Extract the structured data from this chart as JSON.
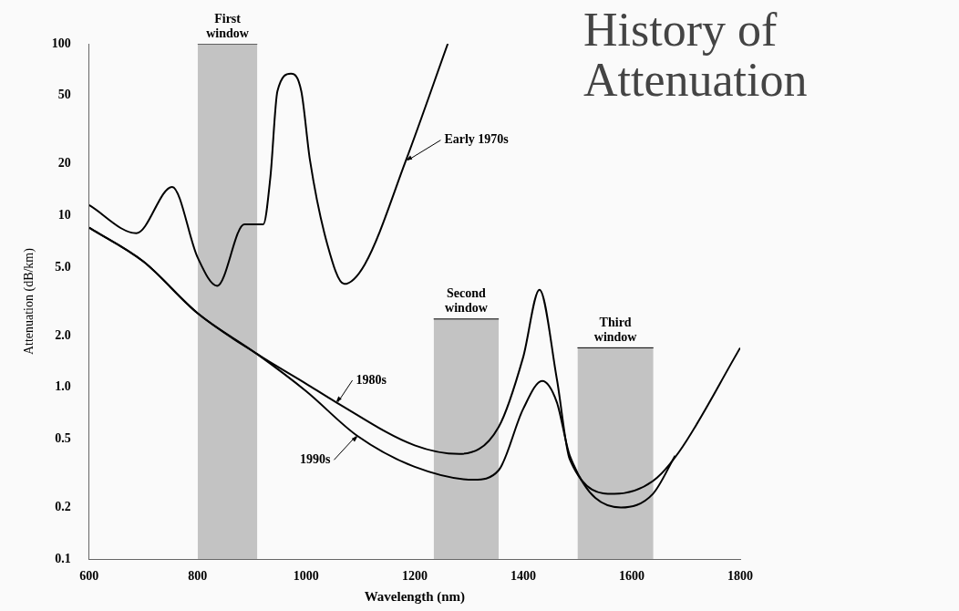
{
  "chart_data": {
    "type": "line",
    "title": "History of Attenuation",
    "xlabel": "Wavelength (nm)",
    "ylabel": "Attenuation (dB/km)",
    "xlim": [
      600,
      1800
    ],
    "xticks": [
      600,
      800,
      1000,
      1200,
      1400,
      1600,
      1800
    ],
    "ylim": [
      0.1,
      100
    ],
    "yticks": [
      {
        "value": 0.1,
        "label": "0.1"
      },
      {
        "value": 0.2,
        "label": "0.2"
      },
      {
        "value": 0.5,
        "label": "0.5"
      },
      {
        "value": 1,
        "label": "1.0"
      },
      {
        "value": 2,
        "label": "2.0"
      },
      {
        "value": 5,
        "label": "5.0"
      },
      10,
      20,
      50,
      100
    ],
    "log": "y",
    "grid": false,
    "legend": false,
    "marker": "none",
    "line_style": "solid",
    "series": [
      {
        "type": "area",
        "color": "#a8a8a8",
        "x": [
          800,
          910
        ],
        "values": [
          100,
          100
        ]
      },
      {
        "type": "area",
        "color": "#a8a8a8",
        "x": [
          1235,
          1355
        ],
        "values": [
          2.5,
          2.5
        ]
      },
      {
        "type": "area",
        "color": "#a8a8a8",
        "x": [
          1500,
          1640
        ],
        "values": [
          1.7,
          1.7
        ]
      },
      {
        "name": "Early 1970s",
        "color": "#000000",
        "x": [
          600,
          687,
          753,
          800,
          836,
          886,
          921,
          934,
          947,
          972,
          991,
          1007,
          1039,
          1070,
          1108,
          1184,
          1261
        ],
        "values": [
          11.5,
          7.9,
          14.7,
          5.7,
          3.9,
          8.9,
          8.9,
          16.7,
          53,
          67,
          53,
          21,
          6.8,
          4.0,
          5.2,
          21,
          100
        ]
      },
      {
        "name": "1980s",
        "color": "#000000",
        "x": [
          600,
          700,
          800,
          910,
          1000,
          1055,
          1200,
          1282,
          1355,
          1400,
          1430,
          1462,
          1486,
          1568,
          1639,
          1687,
          1800
        ],
        "values": [
          8.5,
          5.4,
          2.7,
          1.56,
          1.05,
          0.82,
          0.46,
          0.41,
          0.59,
          1.5,
          3.7,
          1.12,
          0.38,
          0.24,
          0.285,
          0.42,
          1.7
        ]
      },
      {
        "name": "1990s",
        "color": "#000000",
        "x": [
          600,
          700,
          800,
          910,
          1000,
          1095,
          1200,
          1309,
          1355,
          1400,
          1435,
          1462,
          1486,
          1580,
          1639,
          1680
        ],
        "values": [
          8.5,
          5.4,
          2.7,
          1.56,
          0.95,
          0.52,
          0.345,
          0.29,
          0.33,
          0.75,
          1.09,
          0.82,
          0.4,
          0.2,
          0.24,
          0.4
        ]
      }
    ],
    "annotations": [
      {
        "text": "First window",
        "x": 855,
        "y": 100
      },
      {
        "text": "Second window",
        "x": 1295,
        "y": 2.5
      },
      {
        "text": "Third window",
        "x": 1570,
        "y": 1.7
      }
    ]
  }
}
